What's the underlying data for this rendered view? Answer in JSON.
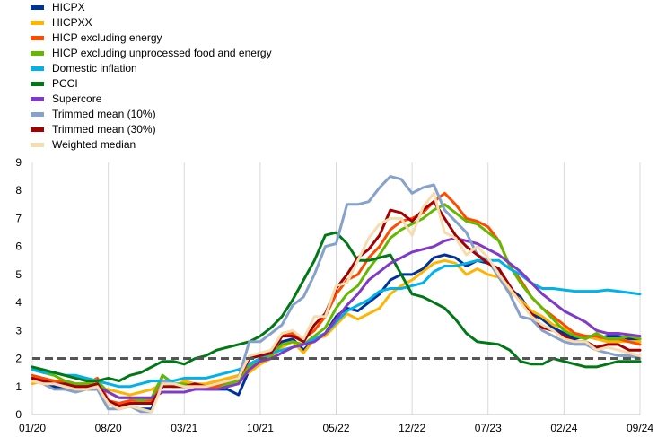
{
  "chart_data": {
    "type": "line",
    "title": "",
    "xlabel": "",
    "ylabel": "",
    "ylim": [
      0,
      9
    ],
    "yticks": [
      0,
      1,
      2,
      3,
      4,
      5,
      6,
      7,
      8,
      9
    ],
    "x_tick_labels": [
      "01/20",
      "08/20",
      "03/21",
      "10/21",
      "05/22",
      "12/22",
      "07/23",
      "02/24",
      "09/24"
    ],
    "x_tick_index": [
      0,
      7,
      14,
      21,
      28,
      35,
      42,
      49,
      56
    ],
    "x_range": [
      0,
      56
    ],
    "legend_position": "top-left",
    "grid": "vertical",
    "reference_line": {
      "value": 2,
      "style": "dashed",
      "color": "#555555"
    },
    "series": [
      {
        "name": "HICPX",
        "color": "#003399",
        "values": [
          1.3,
          1.1,
          1.0,
          0.9,
          0.9,
          0.9,
          0.9,
          0.4,
          0.2,
          0.3,
          0.2,
          0.2,
          1.4,
          1.1,
          1.0,
          1.0,
          0.9,
          0.9,
          0.9,
          0.7,
          1.6,
          1.9,
          2.0,
          2.6,
          2.7,
          2.3,
          2.7,
          2.9,
          3.5,
          3.8,
          3.7,
          4.0,
          4.3,
          4.8,
          5.0,
          5.0,
          5.2,
          5.6,
          5.7,
          5.6,
          5.3,
          5.5,
          5.4,
          5.2,
          4.5,
          4.2,
          3.6,
          3.4,
          3.1,
          2.9,
          2.7,
          2.8,
          2.7,
          2.8,
          2.8,
          2.7,
          2.7
        ]
      },
      {
        "name": "HICPXX",
        "color": "#FFB400",
        "values": [
          1.1,
          1.2,
          1.1,
          1.0,
          1.0,
          1.0,
          0.9,
          0.9,
          0.8,
          0.7,
          0.8,
          0.9,
          1.1,
          1.0,
          1.2,
          1.1,
          1.1,
          1.2,
          1.3,
          1.4,
          1.5,
          1.8,
          2.0,
          2.4,
          2.6,
          2.2,
          2.7,
          2.8,
          3.2,
          3.6,
          3.4,
          3.6,
          3.8,
          4.3,
          4.6,
          4.8,
          5.1,
          5.4,
          5.5,
          5.4,
          5.0,
          5.2,
          5.0,
          4.9,
          4.4,
          4.1,
          3.7,
          3.5,
          3.2,
          3.1,
          2.9,
          2.8,
          2.7,
          2.6,
          2.6,
          2.6,
          2.6
        ]
      },
      {
        "name": "HICP excluding energy",
        "color": "#FF4B00",
        "values": [
          1.4,
          1.3,
          1.2,
          1.2,
          1.1,
          1.1,
          1.3,
          0.5,
          0.4,
          0.5,
          0.5,
          0.5,
          1.2,
          1.0,
          1.0,
          1.0,
          0.9,
          1.0,
          1.2,
          1.3,
          1.8,
          2.0,
          2.1,
          2.8,
          2.9,
          2.7,
          3.0,
          3.5,
          4.3,
          4.8,
          5.0,
          5.6,
          6.0,
          6.6,
          6.9,
          7.0,
          7.2,
          7.6,
          7.9,
          7.5,
          7.0,
          6.9,
          6.7,
          6.2,
          5.3,
          4.8,
          4.2,
          3.8,
          3.5,
          3.2,
          2.9,
          2.8,
          2.8,
          2.7,
          2.7,
          2.6,
          2.5
        ]
      },
      {
        "name": "HICP excluding unprocessed food and energy",
        "color": "#65B800",
        "values": [
          1.7,
          1.5,
          1.4,
          1.2,
          1.1,
          1.1,
          1.2,
          0.8,
          0.6,
          0.6,
          0.5,
          0.6,
          1.4,
          1.1,
          1.1,
          1.0,
          0.9,
          0.9,
          1.1,
          1.2,
          1.7,
          1.9,
          2.1,
          2.5,
          2.6,
          2.5,
          2.8,
          3.1,
          3.8,
          4.3,
          4.6,
          5.2,
          5.7,
          6.3,
          6.6,
          6.8,
          7.0,
          7.3,
          7.5,
          7.2,
          6.9,
          6.8,
          6.5,
          6.2,
          5.3,
          4.7,
          4.2,
          3.8,
          3.4,
          3.0,
          2.8,
          2.7,
          2.9,
          2.7,
          2.7,
          2.8,
          2.7
        ]
      },
      {
        "name": "Domestic inflation",
        "color": "#00B1EA",
        "values": [
          1.6,
          1.5,
          1.5,
          1.4,
          1.4,
          1.3,
          1.2,
          1.1,
          1.0,
          1.0,
          1.1,
          1.2,
          1.2,
          1.2,
          1.3,
          1.3,
          1.3,
          1.4,
          1.5,
          1.6,
          1.8,
          2.0,
          2.2,
          2.3,
          2.4,
          2.5,
          2.7,
          2.9,
          3.3,
          3.7,
          3.9,
          4.1,
          4.4,
          4.5,
          4.5,
          4.6,
          4.7,
          5.1,
          5.3,
          5.3,
          5.4,
          5.5,
          5.5,
          5.5,
          5.2,
          5.0,
          4.7,
          4.5,
          4.5,
          4.45,
          4.4,
          4.4,
          4.4,
          4.45,
          4.4,
          4.35,
          4.3
        ]
      },
      {
        "name": "PCCI",
        "color": "#007816",
        "values": [
          1.7,
          1.6,
          1.5,
          1.4,
          1.3,
          1.2,
          1.2,
          1.3,
          1.2,
          1.4,
          1.5,
          1.7,
          1.9,
          1.9,
          1.8,
          2.0,
          2.1,
          2.3,
          2.4,
          2.5,
          2.6,
          2.8,
          3.1,
          3.5,
          4.1,
          4.8,
          5.5,
          6.4,
          6.5,
          6.1,
          5.5,
          5.5,
          5.6,
          5.7,
          5.0,
          4.3,
          4.2,
          4.0,
          3.8,
          3.4,
          2.9,
          2.6,
          2.55,
          2.5,
          2.3,
          1.9,
          1.8,
          1.8,
          2.0,
          1.9,
          1.8,
          1.7,
          1.7,
          1.8,
          1.9,
          1.9,
          1.9
        ]
      },
      {
        "name": "Supercore",
        "color": "#8139C6",
        "values": [
          1.3,
          1.2,
          1.1,
          1.1,
          1.0,
          1.0,
          1.0,
          0.8,
          0.6,
          0.6,
          0.6,
          0.6,
          0.8,
          0.8,
          0.8,
          0.9,
          0.9,
          0.9,
          1.0,
          1.1,
          1.6,
          1.9,
          2.0,
          2.2,
          2.4,
          2.5,
          2.6,
          2.9,
          3.4,
          3.9,
          4.3,
          4.8,
          5.1,
          5.4,
          5.6,
          5.8,
          5.9,
          6.0,
          6.2,
          6.3,
          6.2,
          6.1,
          5.9,
          5.7,
          5.4,
          5.1,
          4.7,
          4.3,
          4.0,
          3.7,
          3.5,
          3.3,
          3.0,
          2.9,
          2.9,
          2.85,
          2.8
        ]
      },
      {
        "name": "Trimmed mean (10%)",
        "color": "#86A1CC",
        "values": [
          1.2,
          1.1,
          0.9,
          0.9,
          0.8,
          0.9,
          0.9,
          0.2,
          0.2,
          0.3,
          0.1,
          0.1,
          1.2,
          1.1,
          1.0,
          1.0,
          1.0,
          1.1,
          1.2,
          1.3,
          2.6,
          2.6,
          2.9,
          3.2,
          3.9,
          4.2,
          5.0,
          6.0,
          6.1,
          7.5,
          7.5,
          7.6,
          8.1,
          8.5,
          8.4,
          7.9,
          8.1,
          8.2,
          7.3,
          6.9,
          6.5,
          5.7,
          5.5,
          4.9,
          4.3,
          3.5,
          3.4,
          3.0,
          2.8,
          2.6,
          2.5,
          2.5,
          2.3,
          2.2,
          2.1,
          2.1,
          2.0
        ]
      },
      {
        "name": "Trimmed mean (30%)",
        "color": "#A50000",
        "values": [
          1.3,
          1.2,
          1.1,
          1.1,
          1.0,
          1.0,
          1.1,
          0.5,
          0.3,
          0.4,
          0.4,
          0.4,
          1.0,
          1.0,
          1.0,
          1.1,
          1.0,
          1.1,
          1.2,
          1.3,
          2.0,
          2.1,
          2.2,
          2.8,
          2.8,
          2.6,
          3.2,
          3.6,
          4.5,
          5.0,
          5.6,
          5.9,
          6.4,
          7.3,
          7.2,
          6.9,
          7.3,
          7.6,
          7.0,
          6.4,
          6.0,
          5.7,
          5.4,
          5.2,
          4.6,
          4.0,
          3.6,
          3.1,
          3.0,
          2.8,
          2.6,
          2.6,
          2.4,
          2.5,
          2.5,
          2.3,
          2.3
        ]
      },
      {
        "name": "Weighted median",
        "color": "#F5DDB0",
        "values": [
          1.2,
          1.1,
          1.1,
          1.0,
          0.9,
          0.9,
          1.0,
          0.4,
          0.2,
          0.3,
          0.2,
          0.1,
          1.1,
          1.1,
          1.0,
          1.0,
          1.0,
          1.1,
          1.2,
          1.3,
          2.1,
          2.2,
          2.3,
          2.9,
          3.0,
          2.7,
          3.5,
          3.5,
          4.6,
          4.7,
          5.5,
          6.3,
          6.8,
          7.0,
          7.0,
          6.4,
          7.4,
          7.9,
          6.5,
          6.3,
          5.7,
          6.0,
          5.6,
          5.0,
          4.5,
          4.0,
          3.5,
          3.2,
          3.0,
          2.7,
          2.6,
          2.6,
          2.3,
          2.4,
          2.3,
          2.2,
          2.1
        ]
      }
    ]
  }
}
